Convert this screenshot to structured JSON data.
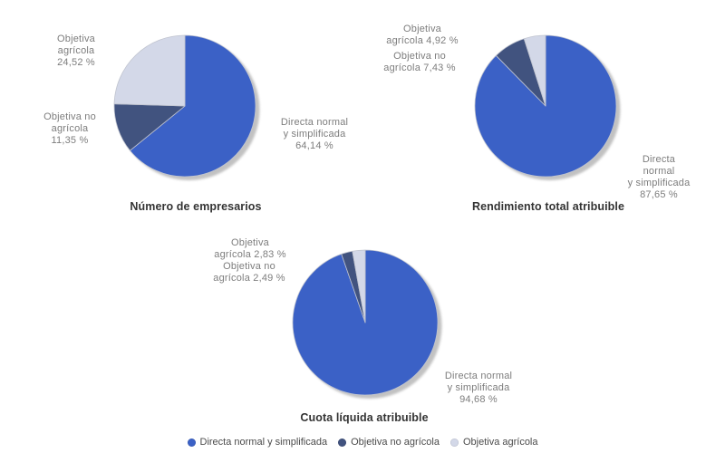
{
  "colors": {
    "directa": "#3b61c6",
    "objetiva_no_agricola": "#41537f",
    "objetiva_agricola": "#d3d8e8",
    "slice_border": "#c0c4cf",
    "shadow": "#999999",
    "label_text": "#7d7d7d",
    "title_text": "#333333",
    "legend_text": "#4a4a4a"
  },
  "chart_data": [
    {
      "type": "pie",
      "title": "Número de empresarios",
      "unit": "%",
      "slices": [
        {
          "name": "Directa normal y simplificada",
          "value": 64.14,
          "color_key": "directa"
        },
        {
          "name": "Objetiva no agrícola",
          "value": 11.35,
          "color_key": "objetiva_no_agricola"
        },
        {
          "name": "Objetiva agrícola",
          "value": 24.52,
          "color_key": "objetiva_agricola"
        }
      ],
      "labels": {
        "agricola": "Objetiva\nagrícola\n24,52 %",
        "no_agricola": "Objetiva no\nagrícola\n11,35 %",
        "directa": "Directa normal\ny simplificada\n64,14 %"
      }
    },
    {
      "type": "pie",
      "title": "Rendimiento total atribuible",
      "unit": "%",
      "slices": [
        {
          "name": "Directa normal y simplificada",
          "value": 87.65,
          "color_key": "directa"
        },
        {
          "name": "Objetiva no agrícola",
          "value": 7.43,
          "color_key": "objetiva_no_agricola"
        },
        {
          "name": "Objetiva agrícola",
          "value": 4.92,
          "color_key": "objetiva_agricola"
        }
      ],
      "labels": {
        "agricola": "Objetiva\nagrícola 4,92 %",
        "no_agricola": "Objetiva no\nagrícola 7,43 %",
        "directa": "Directa normal\ny simplificada\n87,65 %"
      }
    },
    {
      "type": "pie",
      "title": "Cuota líquida atribuible",
      "unit": "%",
      "slices": [
        {
          "name": "Directa normal y simplificada",
          "value": 94.68,
          "color_key": "directa"
        },
        {
          "name": "Objetiva no agrícola",
          "value": 2.49,
          "color_key": "objetiva_no_agricola"
        },
        {
          "name": "Objetiva agrícola",
          "value": 2.83,
          "color_key": "objetiva_agricola"
        }
      ],
      "labels": {
        "agricola": "Objetiva\nagrícola 2,83 %",
        "no_agricola": "Objetiva no\nagrícola 2,49 %",
        "directa": "Directa normal\ny simplificada\n94,68 %"
      }
    }
  ],
  "legend": {
    "items": [
      {
        "label": "Directa normal y simplificada",
        "color_key": "directa"
      },
      {
        "label": "Objetiva no agrícola",
        "color_key": "objetiva_no_agricola"
      },
      {
        "label": "Objetiva agrícola",
        "color_key": "objetiva_agricola"
      }
    ]
  }
}
